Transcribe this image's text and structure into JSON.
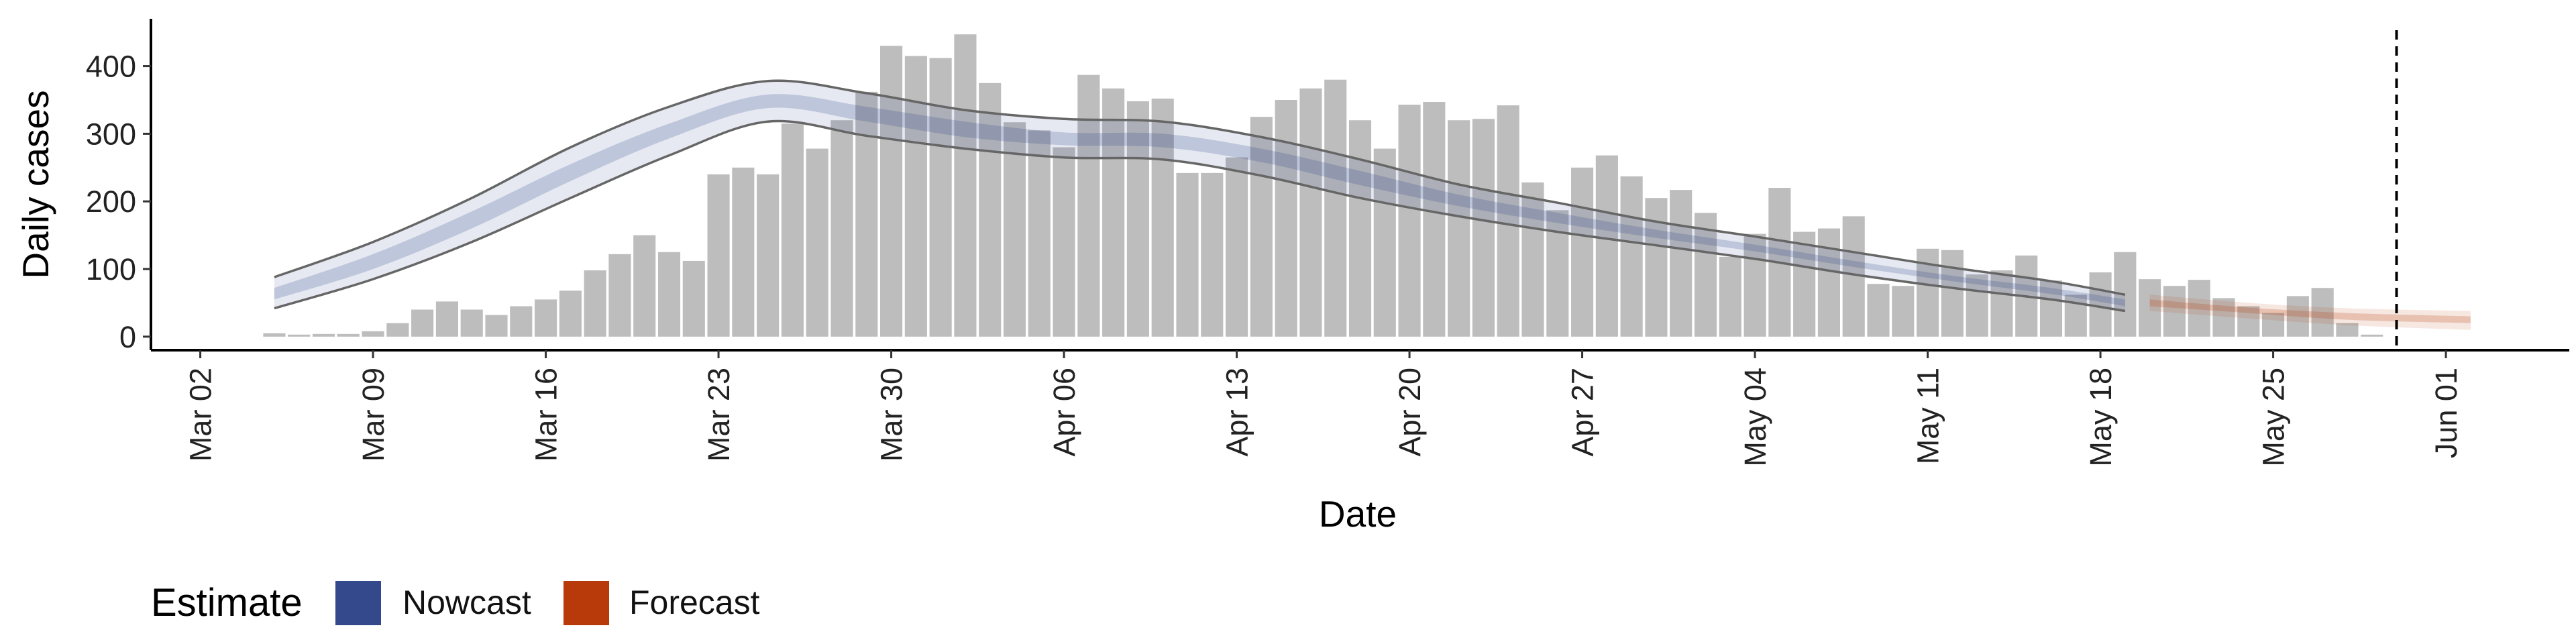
{
  "chart_data": {
    "type": "bar",
    "title": "",
    "xlabel": "Date",
    "ylabel": "Daily cases",
    "ylim": [
      -20,
      470
    ],
    "yticks": [
      0,
      100,
      200,
      300,
      400
    ],
    "xlim": [
      "2020-02-29",
      "2020-06-06"
    ],
    "xticks": [
      {
        "date": "2020-03-02",
        "label": "Mar 02"
      },
      {
        "date": "2020-03-09",
        "label": "Mar 09"
      },
      {
        "date": "2020-03-16",
        "label": "Mar 16"
      },
      {
        "date": "2020-03-23",
        "label": "Mar 23"
      },
      {
        "date": "2020-03-30",
        "label": "Mar 30"
      },
      {
        "date": "2020-04-06",
        "label": "Apr 06"
      },
      {
        "date": "2020-04-13",
        "label": "Apr 13"
      },
      {
        "date": "2020-04-20",
        "label": "Apr 20"
      },
      {
        "date": "2020-04-27",
        "label": "Apr 27"
      },
      {
        "date": "2020-05-04",
        "label": "May 04"
      },
      {
        "date": "2020-05-11",
        "label": "May 11"
      },
      {
        "date": "2020-05-18",
        "label": "May 18"
      },
      {
        "date": "2020-05-25",
        "label": "May 25"
      },
      {
        "date": "2020-06-01",
        "label": "Jun 01"
      }
    ],
    "bar_color": "#bdbdbd",
    "bars": {
      "start_date": "2020-03-05",
      "values": [
        5,
        3,
        4,
        4,
        8,
        20,
        40,
        52,
        40,
        32,
        45,
        55,
        68,
        98,
        122,
        150,
        125,
        112,
        240,
        250,
        240,
        315,
        278,
        320,
        362,
        430,
        415,
        412,
        447,
        375,
        317,
        305,
        280,
        387,
        367,
        348,
        352,
        242,
        242,
        265,
        325,
        350,
        367,
        380,
        320,
        278,
        343,
        347,
        320,
        322,
        342,
        228,
        187,
        250,
        268,
        237,
        205,
        217,
        183,
        118,
        152,
        220,
        155,
        160,
        178,
        78,
        75,
        130,
        128,
        92,
        98,
        120,
        83,
        62,
        95,
        125,
        85,
        75,
        84,
        57,
        45,
        35,
        60,
        72,
        20,
        3
      ]
    },
    "cutoff_date": "2020-05-30",
    "nowcast": {
      "name": "Nowcast",
      "color": "#33498c",
      "dates": [
        "2020-03-05",
        "2020-03-09",
        "2020-03-13",
        "2020-03-17",
        "2020-03-21",
        "2020-03-25",
        "2020-03-29",
        "2020-04-02",
        "2020-04-06",
        "2020-04-10",
        "2020-04-14",
        "2020-04-18",
        "2020-04-22",
        "2020-04-26",
        "2020-04-30",
        "2020-05-04",
        "2020-05-08",
        "2020-05-12",
        "2020-05-16",
        "2020-05-19"
      ],
      "outer_upper": [
        88,
        140,
        205,
        280,
        340,
        378,
        360,
        335,
        322,
        318,
        295,
        262,
        225,
        198,
        170,
        148,
        125,
        102,
        82,
        62
      ],
      "outer_lower": [
        42,
        85,
        140,
        205,
        268,
        318,
        297,
        278,
        265,
        262,
        238,
        205,
        178,
        155,
        135,
        115,
        92,
        72,
        55,
        38
      ],
      "inner_upper": [
        72,
        122,
        185,
        255,
        315,
        358,
        340,
        318,
        302,
        300,
        278,
        245,
        210,
        183,
        158,
        136,
        112,
        90,
        72,
        55
      ],
      "inner_lower": [
        55,
        100,
        160,
        230,
        293,
        338,
        318,
        295,
        283,
        280,
        258,
        224,
        193,
        168,
        146,
        126,
        103,
        82,
        63,
        45
      ]
    },
    "forecast": {
      "name": "Forecast",
      "color": "#b83a0b",
      "dates": [
        "2020-05-20",
        "2020-05-24",
        "2020-05-28",
        "2020-06-02"
      ],
      "outer_upper": [
        62,
        50,
        42,
        38
      ],
      "outer_lower": [
        38,
        27,
        17,
        10
      ],
      "inner_upper": [
        55,
        43,
        35,
        30
      ],
      "inner_lower": [
        45,
        35,
        25,
        20
      ]
    },
    "legend": {
      "title": "Estimate",
      "placement": "bottom-left",
      "entries": [
        {
          "label": "Nowcast",
          "color": "#33498c"
        },
        {
          "label": "Forecast",
          "color": "#b83a0b"
        }
      ]
    },
    "grid": false
  }
}
